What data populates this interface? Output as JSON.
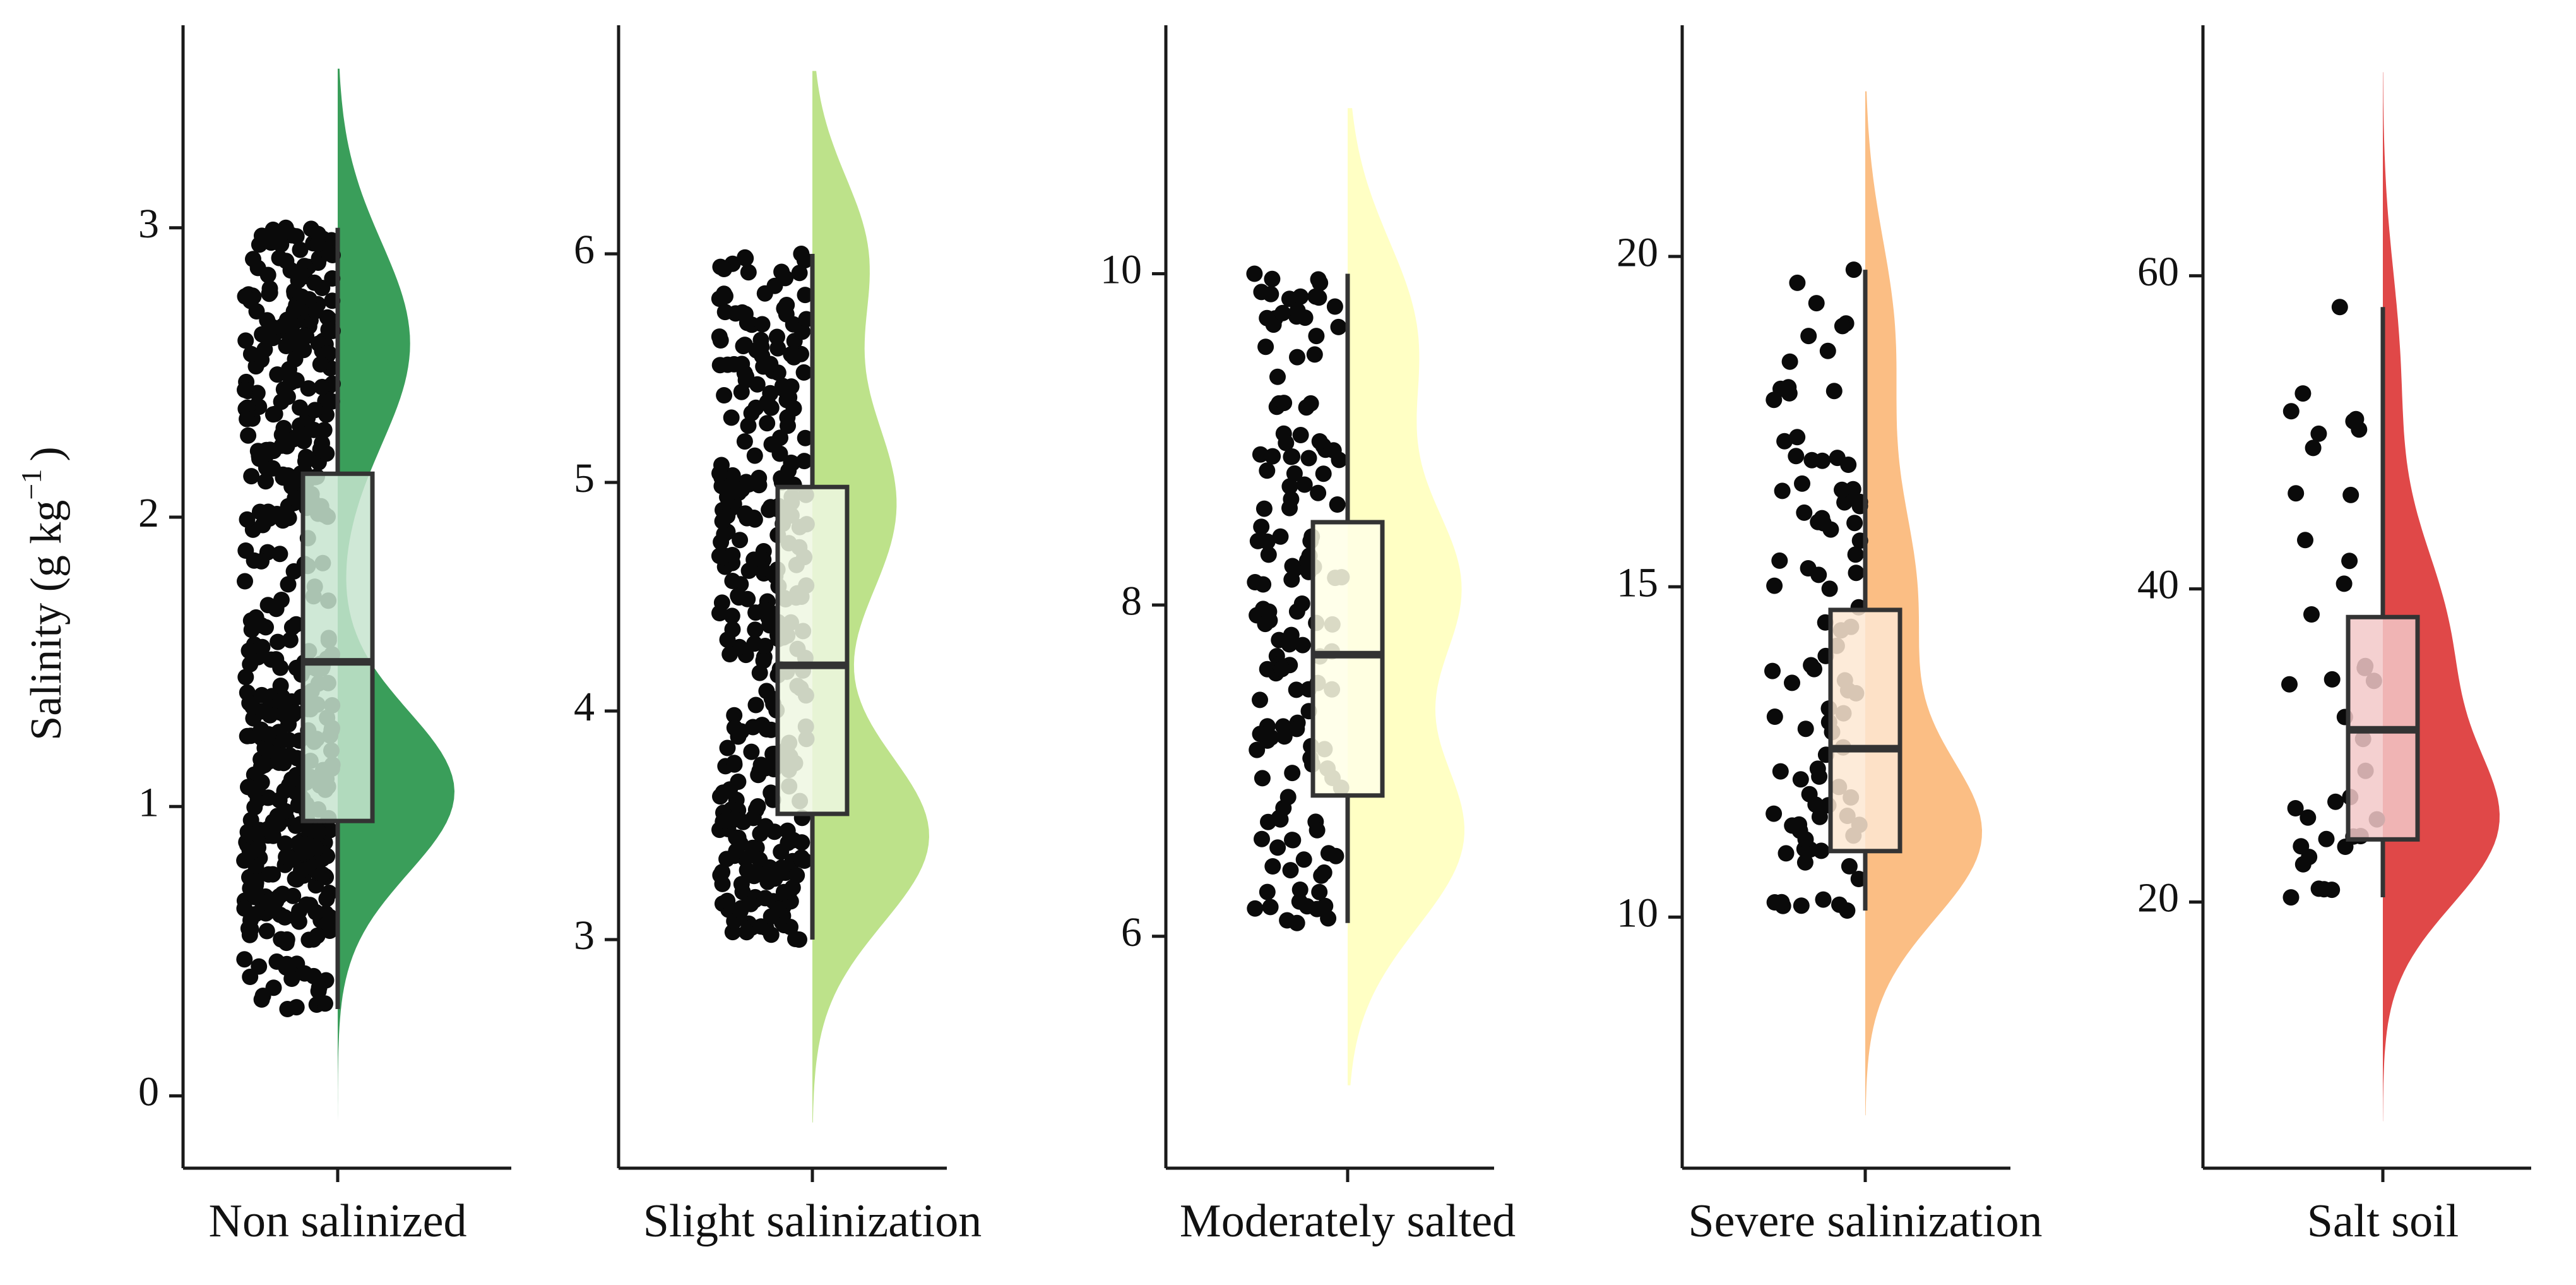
{
  "chart_data": {
    "type": "raincloud",
    "ylabel": "Salinity (g kg",
    "ylabel_exponent": "−1",
    "ylabel_close": ")",
    "panels": [
      {
        "category": "Non salinized",
        "color": "#3a9e5a",
        "box_fill": "#c7e4cf",
        "ylim": [
          -0.25,
          3.7
        ],
        "ticks": [
          0,
          1,
          2,
          3
        ],
        "whisker_low": 0.3,
        "q1": 0.95,
        "median": 1.5,
        "q3": 2.15,
        "whisker_high": 3.0,
        "density_range": [
          -0.25,
          3.55
        ],
        "density_peaks": [
          [
            1.05,
            0.28,
            1.0
          ],
          [
            2.6,
            0.35,
            0.62
          ]
        ],
        "n_points": 500,
        "points_range": [
          0.3,
          3.0
        ],
        "seed": 11
      },
      {
        "category": "Slight salinization",
        "color": "#bde28a",
        "box_fill": "#eef7e2",
        "ylim": [
          2.0,
          7.0
        ],
        "ticks": [
          3,
          4,
          5,
          6
        ],
        "whisker_low": 3.0,
        "q1": 3.55,
        "median": 4.2,
        "q3": 4.98,
        "whisker_high": 6.0,
        "density_range": [
          2.2,
          6.8
        ],
        "density_peaks": [
          [
            3.45,
            0.38,
            1.0
          ],
          [
            4.9,
            0.45,
            0.72
          ],
          [
            6.0,
            0.35,
            0.45
          ]
        ],
        "n_points": 330,
        "points_range": [
          3.0,
          6.0
        ],
        "seed": 23
      },
      {
        "category": "Moderately salted",
        "color": "#ffffc4",
        "box_fill": "#ffffe6",
        "ylim": [
          4.6,
          11.5
        ],
        "ticks": [
          6,
          8,
          10
        ],
        "whisker_low": 6.08,
        "q1": 6.85,
        "median": 7.7,
        "q3": 8.5,
        "whisker_high": 10.0,
        "density_range": [
          5.1,
          11.0
        ],
        "density_peaks": [
          [
            6.6,
            0.55,
            1.0
          ],
          [
            8.1,
            0.55,
            0.95
          ],
          [
            9.6,
            0.6,
            0.6
          ]
        ],
        "n_points": 145,
        "points_range": [
          6.08,
          10.0
        ],
        "seed": 37
      },
      {
        "category": "Severe salinization",
        "color": "#fbbe84",
        "box_fill": "#fde7d2",
        "ylim": [
          6.2,
          23.5
        ],
        "ticks": [
          10,
          15,
          20
        ],
        "whisker_low": 10.1,
        "q1": 11.0,
        "median": 12.55,
        "q3": 14.65,
        "whisker_high": 19.8,
        "density_range": [
          7.0,
          22.5
        ],
        "density_peaks": [
          [
            11.2,
            1.25,
            1.0
          ],
          [
            14.8,
            1.6,
            0.45
          ],
          [
            18.8,
            1.5,
            0.25
          ]
        ],
        "n_points": 95,
        "points_range": [
          10.1,
          19.8
        ],
        "seed": 51
      },
      {
        "category": "Salt soil",
        "color": "#e04848",
        "box_fill": "#f2c8c8",
        "ylim": [
          3.0,
          76.0
        ],
        "ticks": [
          20,
          40,
          60
        ],
        "whisker_low": 20.3,
        "q1": 24.0,
        "median": 31.0,
        "q3": 38.2,
        "whisker_high": 58.0,
        "density_range": [
          6.0,
          73.0
        ],
        "density_peaks": [
          [
            24.5,
            5.0,
            1.0
          ],
          [
            36.5,
            6.5,
            0.62
          ],
          [
            54.0,
            6.5,
            0.16
          ]
        ],
        "n_points": 38,
        "points_range": [
          20.3,
          58.0
        ],
        "seed": 67
      }
    ]
  }
}
